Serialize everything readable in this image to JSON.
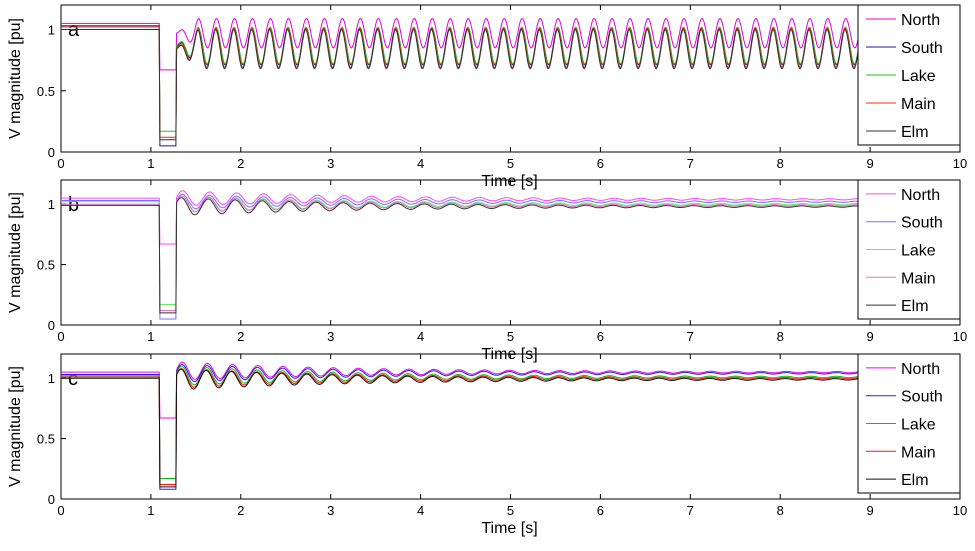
{
  "chart_data": [
    {
      "panel": "a",
      "type": "line",
      "xlabel": "Time [s]",
      "ylabel": "V magnitude [pu]",
      "xlim": [
        0,
        10
      ],
      "ylim": [
        0,
        1.2
      ],
      "xticks": [
        0,
        1,
        2,
        3,
        4,
        5,
        6,
        7,
        8,
        9,
        10
      ],
      "yticks": [
        0,
        0.5,
        1
      ],
      "legend_position": "top-right",
      "fault": {
        "start": 1.1,
        "end": 1.28
      },
      "series": [
        {
          "name": "North",
          "color": "#e000e0",
          "prefault": 1.05,
          "during_fault": 0.67,
          "postfault": 0.97,
          "osc_amplitude": 0.12,
          "osc_period": 0.2,
          "settle": 0.97
        },
        {
          "name": "South",
          "color": "#1a1aa8",
          "prefault": 1.03,
          "during_fault": 0.05,
          "postfault": 0.86,
          "osc_amplitude": 0.15,
          "osc_period": 0.2,
          "settle": 0.86
        },
        {
          "name": "Lake",
          "color": "#22c022",
          "prefault": 1.02,
          "during_fault": 0.17,
          "postfault": 0.87,
          "osc_amplitude": 0.15,
          "osc_period": 0.2,
          "settle": 0.87
        },
        {
          "name": "Main",
          "color": "#ff2a00",
          "prefault": 1.02,
          "during_fault": 0.12,
          "postfault": 0.85,
          "osc_amplitude": 0.16,
          "osc_period": 0.2,
          "settle": 0.85
        },
        {
          "name": "Elm",
          "color": "#333333",
          "prefault": 1.0,
          "during_fault": 0.1,
          "postfault": 0.84,
          "osc_amplitude": 0.16,
          "osc_period": 0.2,
          "settle": 0.84
        }
      ]
    },
    {
      "panel": "b",
      "type": "line",
      "xlabel": "Time [s]",
      "ylabel": "V magnitude [pu]",
      "xlim": [
        0,
        10
      ],
      "ylim": [
        0,
        1.2
      ],
      "xticks": [
        0,
        1,
        2,
        3,
        4,
        5,
        6,
        7,
        8,
        9,
        10
      ],
      "yticks": [
        0,
        0.5,
        1
      ],
      "legend_position": "top-right",
      "fault": {
        "start": 1.1,
        "end": 1.28
      },
      "series": [
        {
          "name": "North",
          "color": "#ff44ff",
          "prefault": 1.05,
          "during_fault": 0.67,
          "postfault": 1.05,
          "osc_amplitude": 0.1,
          "osc_period": 0.3,
          "settle": 1.04
        },
        {
          "name": "South",
          "color": "#7070ff",
          "prefault": 1.03,
          "during_fault": 0.05,
          "postfault": 1.02,
          "osc_amplitude": 0.1,
          "osc_period": 0.3,
          "settle": 1.02
        },
        {
          "name": "Lake",
          "color": "#66ee66",
          "prefault": 1.02,
          "during_fault": 0.17,
          "postfault": 1.0,
          "osc_amplitude": 0.11,
          "osc_period": 0.3,
          "settle": 1.0
        },
        {
          "name": "Main",
          "color": "#e070c0",
          "prefault": 1.0,
          "during_fault": 0.12,
          "postfault": 1.0,
          "osc_amplitude": 0.11,
          "osc_period": 0.3,
          "settle": 0.99
        },
        {
          "name": "Elm",
          "color": "#333333",
          "prefault": 0.99,
          "during_fault": 0.1,
          "postfault": 0.98,
          "osc_amplitude": 0.12,
          "osc_period": 0.3,
          "settle": 0.98
        }
      ]
    },
    {
      "panel": "c",
      "type": "line",
      "xlabel": "Time [s]",
      "ylabel": "V magnitude [pu]",
      "xlim": [
        0,
        10
      ],
      "ylim": [
        0,
        1.2
      ],
      "xticks": [
        0,
        1,
        2,
        3,
        4,
        5,
        6,
        7,
        8,
        9,
        10
      ],
      "yticks": [
        0,
        0.5,
        1
      ],
      "legend_position": "top-right",
      "fault": {
        "start": 1.1,
        "end": 1.28
      },
      "series": [
        {
          "name": "North",
          "color": "#ee00ee",
          "prefault": 1.05,
          "during_fault": 0.67,
          "postfault": 1.06,
          "osc_amplitude": 0.12,
          "osc_period": 0.28,
          "settle": 1.05
        },
        {
          "name": "South",
          "color": "#2222dd",
          "prefault": 1.03,
          "during_fault": 0.08,
          "postfault": 1.04,
          "osc_amplitude": 0.12,
          "osc_period": 0.28,
          "settle": 1.04
        },
        {
          "name": "Lake",
          "color": "#11bb11",
          "prefault": 1.02,
          "during_fault": 0.17,
          "postfault": 1.02,
          "osc_amplitude": 0.13,
          "osc_period": 0.28,
          "settle": 1.01
        },
        {
          "name": "Main",
          "color": "#ff1111",
          "prefault": 1.01,
          "during_fault": 0.12,
          "postfault": 1.0,
          "osc_amplitude": 0.13,
          "osc_period": 0.28,
          "settle": 1.0
        },
        {
          "name": "Elm",
          "color": "#111111",
          "prefault": 1.0,
          "during_fault": 0.1,
          "postfault": 0.99,
          "osc_amplitude": 0.14,
          "osc_period": 0.28,
          "settle": 0.99
        }
      ]
    }
  ]
}
